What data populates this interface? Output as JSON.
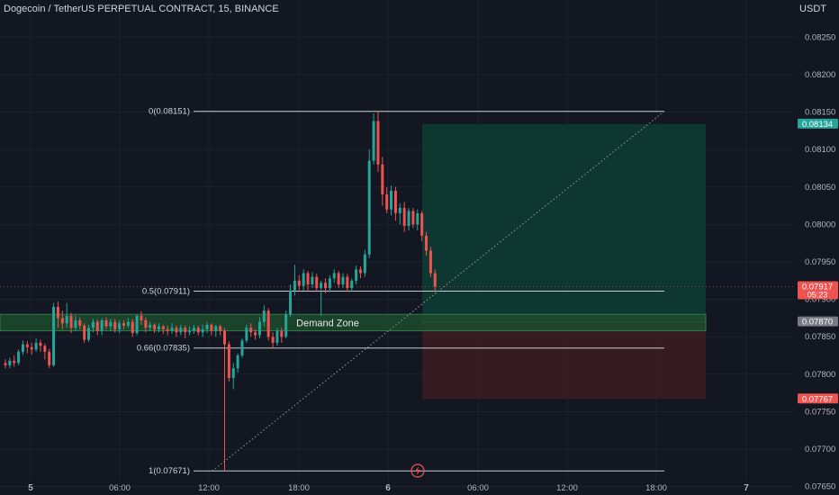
{
  "header": {
    "symbol_title": "Dogecoin / TetherUS PERPETUAL CONTRACT, 15, BINANCE",
    "currency": "USDT"
  },
  "colors": {
    "background": "#131722",
    "grid": "#1e222d",
    "up": "#26a69a",
    "down": "#ef5350",
    "text": "#d1d4dc",
    "axis_text": "#b2b5be",
    "target_zone": "#0e3b34",
    "stop_zone": "#3b1c22",
    "demand_zone": "#1d4a2b"
  },
  "chart_data": {
    "type": "candlestick",
    "price_axis": {
      "ticks": [
        "0.08250",
        "0.08200",
        "0.08150",
        "0.08100",
        "0.08050",
        "0.08000",
        "0.07950",
        "0.07900",
        "0.07850",
        "0.07800",
        "0.07750",
        "0.07700",
        "0.07650"
      ],
      "range": [
        0.0764,
        0.0829
      ]
    },
    "time_axis": {
      "labels": [
        "5",
        "06:00",
        "12:00",
        "18:00",
        "6",
        "06:00",
        "12:00",
        "18:00",
        "7"
      ]
    },
    "price_badges": [
      {
        "id": "target",
        "text": "0.08134",
        "value": 0.08134,
        "color": "#26a69a"
      },
      {
        "id": "last",
        "text": "0.07917",
        "sub": "05:23",
        "value": 0.07917,
        "color": "#ef5350"
      },
      {
        "id": "entry",
        "text": "0.07870",
        "value": 0.0787,
        "color": "#787b86"
      },
      {
        "id": "stop",
        "text": "0.07767",
        "value": 0.07767,
        "color": "#ef5350"
      }
    ],
    "fib_levels": [
      {
        "label": "0(0.08151)",
        "value": 0.08151
      },
      {
        "label": "0.5(0.07911)",
        "value": 0.07911
      },
      {
        "label": "0.66(0.07835)",
        "value": 0.07835
      },
      {
        "label": "1(0.07671)",
        "value": 0.07671
      }
    ],
    "demand_zone": {
      "label": "Demand Zone",
      "top": 0.0788,
      "bottom": 0.07858
    },
    "position": {
      "target": 0.08134,
      "entry": 0.0787,
      "stop": 0.07767
    },
    "candles": [
      [
        0.07815,
        0.07812,
        0.0782,
        0.07808
      ],
      [
        0.07812,
        0.07818,
        0.07822,
        0.07808
      ],
      [
        0.07818,
        0.07815,
        0.07825,
        0.0781
      ],
      [
        0.07815,
        0.0783,
        0.07833,
        0.07812
      ],
      [
        0.0783,
        0.0784,
        0.07845,
        0.07826
      ],
      [
        0.0784,
        0.07836,
        0.07844,
        0.07828
      ],
      [
        0.07836,
        0.07833,
        0.07842,
        0.07826
      ],
      [
        0.07833,
        0.07842,
        0.07848,
        0.0783
      ],
      [
        0.07842,
        0.07838,
        0.07846,
        0.0783
      ],
      [
        0.07838,
        0.0783,
        0.07841,
        0.0782
      ],
      [
        0.0783,
        0.07812,
        0.07834,
        0.07808
      ],
      [
        0.07812,
        0.0789,
        0.07895,
        0.0781
      ],
      [
        0.0789,
        0.07875,
        0.07897,
        0.07862
      ],
      [
        0.07875,
        0.07868,
        0.07885,
        0.0786
      ],
      [
        0.07868,
        0.07878,
        0.07895,
        0.07862
      ],
      [
        0.07878,
        0.07862,
        0.07882,
        0.07855
      ],
      [
        0.07862,
        0.07872,
        0.07878,
        0.07858
      ],
      [
        0.07872,
        0.07865,
        0.07876,
        0.0786
      ],
      [
        0.07865,
        0.07846,
        0.07868,
        0.07842
      ],
      [
        0.07846,
        0.07862,
        0.07866,
        0.07843
      ],
      [
        0.07862,
        0.0787,
        0.07874,
        0.07856
      ],
      [
        0.0787,
        0.07858,
        0.07873,
        0.07852
      ],
      [
        0.07858,
        0.07872,
        0.07875,
        0.07852
      ],
      [
        0.07872,
        0.07864,
        0.07876,
        0.0786
      ],
      [
        0.07864,
        0.0787,
        0.07874,
        0.07858
      ],
      [
        0.0787,
        0.0786,
        0.07874,
        0.07856
      ],
      [
        0.0786,
        0.07868,
        0.07872,
        0.07855
      ],
      [
        0.07868,
        0.07865,
        0.07872,
        0.0786
      ],
      [
        0.07865,
        0.0787,
        0.07875,
        0.07862
      ],
      [
        0.0787,
        0.07855,
        0.07874,
        0.0785
      ],
      [
        0.07855,
        0.07878,
        0.0788,
        0.07852
      ],
      [
        0.07878,
        0.07872,
        0.07884,
        0.07866
      ],
      [
        0.07872,
        0.07862,
        0.07876,
        0.07856
      ],
      [
        0.07862,
        0.07866,
        0.0787,
        0.07858
      ],
      [
        0.07866,
        0.0786,
        0.07868,
        0.07855
      ],
      [
        0.0786,
        0.07864,
        0.07868,
        0.07856
      ],
      [
        0.07864,
        0.0786,
        0.07866,
        0.07854
      ],
      [
        0.0786,
        0.07858,
        0.07865,
        0.07852
      ],
      [
        0.07858,
        0.07862,
        0.07868,
        0.07854
      ],
      [
        0.07862,
        0.07856,
        0.07865,
        0.0785
      ],
      [
        0.07856,
        0.07862,
        0.07866,
        0.07852
      ],
      [
        0.07862,
        0.07856,
        0.07865,
        0.07848
      ],
      [
        0.07856,
        0.07858,
        0.07864,
        0.07852
      ],
      [
        0.07858,
        0.07862,
        0.07866,
        0.07854
      ],
      [
        0.07862,
        0.07856,
        0.07865,
        0.07852
      ],
      [
        0.07856,
        0.0786,
        0.07866,
        0.0785
      ],
      [
        0.0786,
        0.07866,
        0.0787,
        0.07855
      ],
      [
        0.07866,
        0.07858,
        0.07868,
        0.07852
      ],
      [
        0.07858,
        0.07864,
        0.07866,
        0.0785
      ],
      [
        0.07864,
        0.07858,
        0.07866,
        0.07852
      ],
      [
        0.07858,
        0.0784,
        0.07862,
        0.07671
      ],
      [
        0.0784,
        0.07795,
        0.07844,
        0.0779
      ],
      [
        0.07795,
        0.07808,
        0.07815,
        0.0778
      ],
      [
        0.07808,
        0.07825,
        0.07828,
        0.07802
      ],
      [
        0.07825,
        0.07845,
        0.07848,
        0.07822
      ],
      [
        0.07845,
        0.07862,
        0.07866,
        0.07842
      ],
      [
        0.07862,
        0.07856,
        0.07868,
        0.0785
      ],
      [
        0.07856,
        0.07852,
        0.0786,
        0.07846
      ],
      [
        0.07852,
        0.0787,
        0.07876,
        0.07848
      ],
      [
        0.0787,
        0.07885,
        0.07892,
        0.07864
      ],
      [
        0.07885,
        0.0785,
        0.07888,
        0.07845
      ],
      [
        0.0785,
        0.07842,
        0.07856,
        0.07835
      ],
      [
        0.07842,
        0.07858,
        0.07862,
        0.07838
      ],
      [
        0.07858,
        0.0785,
        0.07862,
        0.07842
      ],
      [
        0.0785,
        0.0788,
        0.07885,
        0.07848
      ],
      [
        0.0788,
        0.07912,
        0.0792,
        0.07876
      ],
      [
        0.07912,
        0.07925,
        0.07946,
        0.07905
      ],
      [
        0.07925,
        0.07918,
        0.07932,
        0.0791
      ],
      [
        0.07918,
        0.07935,
        0.0794,
        0.07912
      ],
      [
        0.07935,
        0.0792,
        0.07938,
        0.0791
      ],
      [
        0.0792,
        0.0793,
        0.07936,
        0.07915
      ],
      [
        0.0793,
        0.07915,
        0.07934,
        0.0791
      ],
      [
        0.07915,
        0.07922,
        0.07925,
        0.07878
      ],
      [
        0.07922,
        0.07915,
        0.07928,
        0.07908
      ],
      [
        0.07915,
        0.07928,
        0.07932,
        0.0791
      ],
      [
        0.07928,
        0.07935,
        0.0794,
        0.07922
      ],
      [
        0.07935,
        0.0792,
        0.07938,
        0.07915
      ],
      [
        0.0792,
        0.0793,
        0.07935,
        0.07915
      ],
      [
        0.0793,
        0.07915,
        0.07934,
        0.0791
      ],
      [
        0.07915,
        0.07925,
        0.07928,
        0.0791
      ],
      [
        0.07925,
        0.0794,
        0.07945,
        0.0792
      ],
      [
        0.0794,
        0.07935,
        0.07944,
        0.07928
      ],
      [
        0.07935,
        0.0796,
        0.07966,
        0.0793
      ],
      [
        0.0796,
        0.08085,
        0.081,
        0.07955
      ],
      [
        0.08085,
        0.08138,
        0.08148,
        0.0808
      ],
      [
        0.08138,
        0.0808,
        0.08151,
        0.0807
      ],
      [
        0.0808,
        0.0804,
        0.0809,
        0.08025
      ],
      [
        0.0804,
        0.0802,
        0.0805,
        0.08015
      ],
      [
        0.0802,
        0.08045,
        0.08052,
        0.08012
      ],
      [
        0.08045,
        0.08015,
        0.0805,
        0.08005
      ],
      [
        0.08015,
        0.08022,
        0.08028,
        0.08
      ],
      [
        0.08022,
        0.07998,
        0.0803,
        0.0799
      ],
      [
        0.07998,
        0.08018,
        0.08022,
        0.07992
      ],
      [
        0.08018,
        0.08,
        0.08022,
        0.07995
      ],
      [
        0.08,
        0.08015,
        0.0802,
        0.07992
      ],
      [
        0.08015,
        0.07985,
        0.08018,
        0.07978
      ],
      [
        0.07985,
        0.07965,
        0.0799,
        0.07958
      ],
      [
        0.07965,
        0.07935,
        0.0797,
        0.0793
      ],
      [
        0.07935,
        0.07917,
        0.0794,
        0.0791
      ]
    ],
    "xlabel": "",
    "ylabel": ""
  }
}
